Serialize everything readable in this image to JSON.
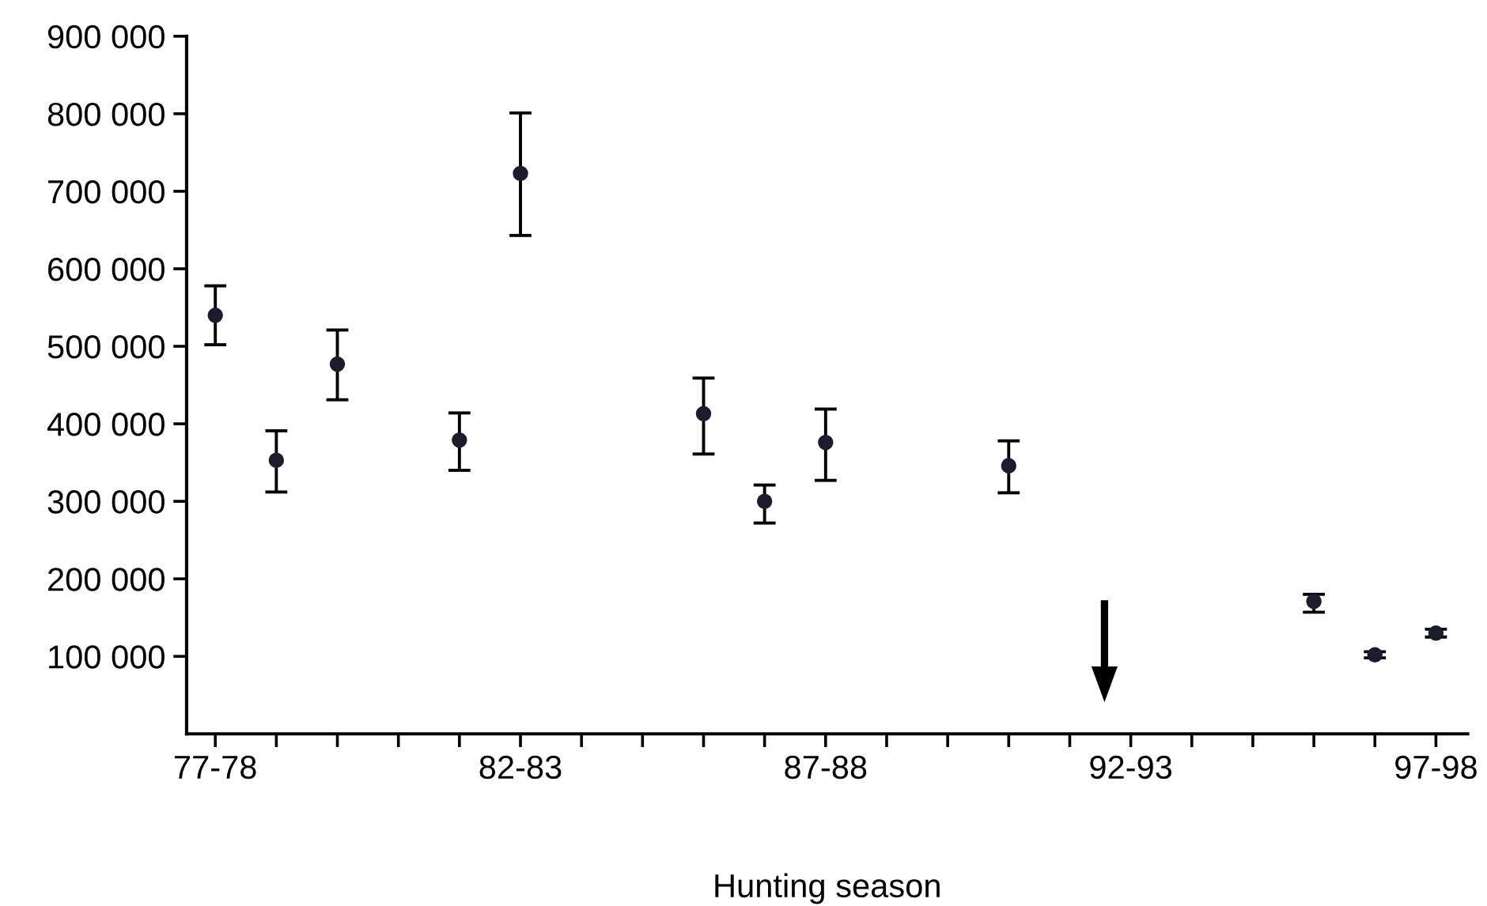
{
  "chart_data": {
    "type": "scatter",
    "xlabel": "Hunting season",
    "categories": [
      "77-78",
      null,
      null,
      null,
      null,
      "82-83",
      null,
      null,
      null,
      null,
      "87-88",
      null,
      null,
      null,
      null,
      "92-93",
      null,
      null,
      null,
      null,
      "97-98"
    ],
    "series": [
      {
        "color": "#1c1c2c",
        "values": [
          540000,
          353000,
          477000,
          null,
          379000,
          723000,
          null,
          null,
          413000,
          300000,
          376000,
          null,
          null,
          346000,
          null,
          null,
          null,
          null,
          171000,
          102000,
          130000
        ],
        "errors": [
          [
            502000,
            578000
          ],
          [
            312000,
            391000
          ],
          [
            431000,
            521000
          ],
          null,
          [
            340000,
            414000
          ],
          [
            643000,
            801000
          ],
          null,
          null,
          [
            361000,
            459000
          ],
          [
            272000,
            321000
          ],
          [
            327000,
            419000
          ],
          null,
          null,
          [
            311000,
            378000
          ],
          null,
          null,
          null,
          null,
          [
            157000,
            180000
          ],
          [
            98000,
            106000
          ],
          [
            125000,
            135000
          ]
        ]
      }
    ],
    "ylim": [
      0,
      900000
    ],
    "yticks": [
      {
        "value": 100000,
        "label": "100 000"
      },
      {
        "value": 200000,
        "label": "200 000"
      },
      {
        "value": 300000,
        "label": "300 000"
      },
      {
        "value": 400000,
        "label": "400 000"
      },
      {
        "value": 500000,
        "label": "500 000"
      },
      {
        "value": 600000,
        "label": "600 000"
      },
      {
        "value": 700000,
        "label": "700 000"
      },
      {
        "value": 800000,
        "label": "800 000"
      },
      {
        "value": 900000,
        "label": "900 000"
      }
    ],
    "marker": "circle",
    "grid": false
  }
}
